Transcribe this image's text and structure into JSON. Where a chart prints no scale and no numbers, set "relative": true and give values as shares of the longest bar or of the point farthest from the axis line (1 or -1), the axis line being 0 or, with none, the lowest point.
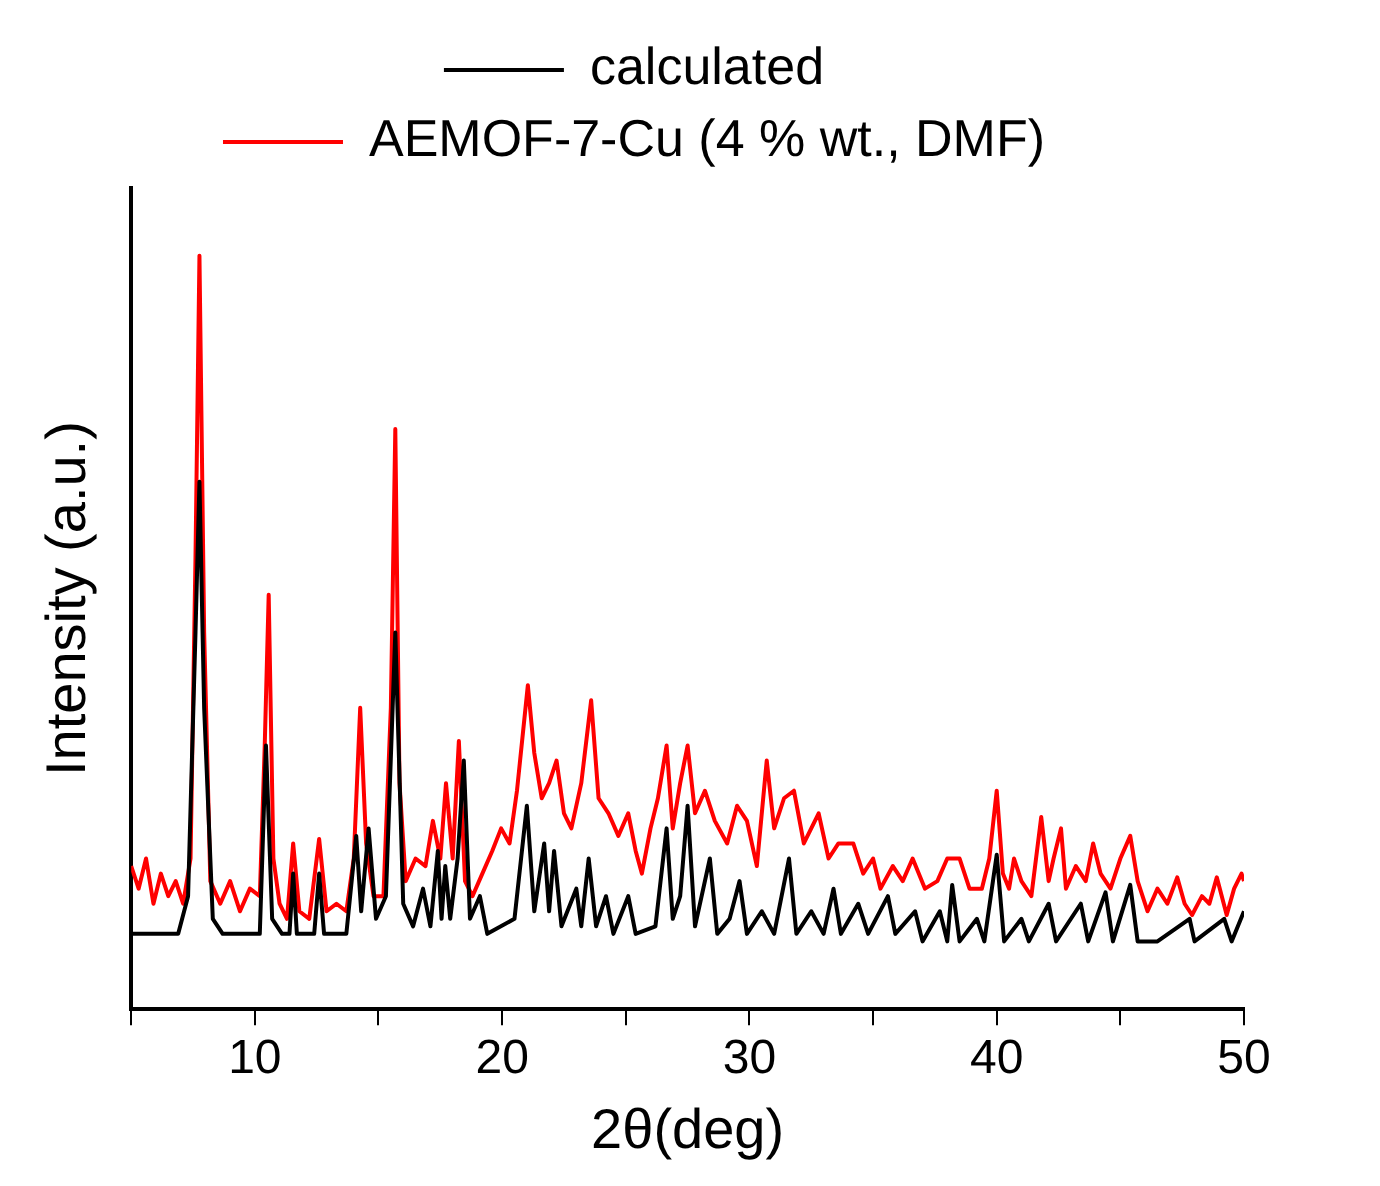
{
  "chart_data": {
    "type": "line",
    "xlabel": "2θ(deg)",
    "ylabel": "Intensity (a.u.)",
    "relative": true,
    "legend": "top",
    "tick_labels": "x",
    "marker": "none",
    "line_style": "solid",
    "xlim": [
      5,
      50
    ],
    "xticks": [
      {
        "value": 5,
        "label": null
      },
      10,
      {
        "value": 15,
        "label": null
      },
      20,
      {
        "value": 25,
        "label": null
      },
      30,
      {
        "value": 35,
        "label": null
      },
      40,
      {
        "value": 45,
        "label": null
      },
      50
    ],
    "series": [
      {
        "name": "calculated",
        "color": "#000000",
        "x": [
          5,
          6.9,
          7.3,
          7.6,
          7.76,
          7.95,
          8.3,
          8.7,
          10.2,
          10.45,
          10.7,
          11.1,
          11.4,
          11.55,
          11.7,
          12.4,
          12.6,
          12.8,
          13.7,
          14.1,
          14.3,
          14.6,
          14.9,
          15.3,
          15.68,
          16.0,
          16.4,
          16.8,
          17.1,
          17.4,
          17.55,
          17.7,
          17.9,
          18.2,
          18.45,
          18.7,
          19.1,
          19.4,
          20.5,
          21.0,
          21.3,
          21.7,
          21.9,
          22.1,
          22.4,
          23.0,
          23.2,
          23.5,
          23.8,
          24.2,
          24.5,
          25.1,
          25.4,
          26.2,
          26.65,
          26.9,
          27.2,
          27.5,
          27.8,
          28.4,
          28.7,
          29.2,
          29.6,
          29.9,
          30.5,
          31.0,
          31.6,
          31.9,
          32.5,
          33.0,
          33.4,
          33.7,
          34.4,
          34.8,
          35.6,
          35.9,
          36.7,
          37.0,
          37.7,
          38.0,
          38.2,
          38.5,
          39.2,
          39.5,
          40.0,
          40.3,
          41.0,
          41.3,
          42.1,
          42.4,
          43.4,
          43.7,
          44.4,
          44.7,
          45.4,
          45.7,
          46.5,
          47.8,
          48.0,
          49.2,
          49.5,
          50
        ],
        "values": [
          0.1,
          0.1,
          0.15,
          0.5,
          0.7,
          0.4,
          0.12,
          0.1,
          0.1,
          0.35,
          0.12,
          0.1,
          0.1,
          0.18,
          0.1,
          0.1,
          0.18,
          0.1,
          0.1,
          0.23,
          0.13,
          0.24,
          0.12,
          0.15,
          0.5,
          0.14,
          0.11,
          0.16,
          0.11,
          0.21,
          0.12,
          0.19,
          0.12,
          0.2,
          0.33,
          0.12,
          0.15,
          0.1,
          0.12,
          0.27,
          0.13,
          0.22,
          0.13,
          0.21,
          0.11,
          0.16,
          0.11,
          0.2,
          0.11,
          0.15,
          0.1,
          0.15,
          0.1,
          0.11,
          0.24,
          0.12,
          0.15,
          0.27,
          0.11,
          0.2,
          0.1,
          0.12,
          0.17,
          0.1,
          0.13,
          0.1,
          0.2,
          0.1,
          0.13,
          0.1,
          0.16,
          0.1,
          0.14,
          0.1,
          0.15,
          0.1,
          0.13,
          0.09,
          0.13,
          0.09,
          0.165,
          0.09,
          0.12,
          0.09,
          0.205,
          0.09,
          0.12,
          0.09,
          0.14,
          0.09,
          0.14,
          0.09,
          0.155,
          0.09,
          0.165,
          0.09,
          0.09,
          0.12,
          0.09,
          0.12,
          0.09,
          0.13
        ]
      },
      {
        "name": "AEMOF-7-Cu (4 % wt., DMF)",
        "color": "#ff0000",
        "x": [
          5,
          5.3,
          5.6,
          5.9,
          6.2,
          6.5,
          6.8,
          7.1,
          7.4,
          7.6,
          7.76,
          7.95,
          8.2,
          8.6,
          9.0,
          9.4,
          9.8,
          10.2,
          10.4,
          10.56,
          10.75,
          11.0,
          11.3,
          11.55,
          11.8,
          12.2,
          12.6,
          12.9,
          13.3,
          13.7,
          14.0,
          14.26,
          14.5,
          14.8,
          15.2,
          15.5,
          15.68,
          15.85,
          16.1,
          16.5,
          16.9,
          17.2,
          17.5,
          17.73,
          18.0,
          18.25,
          18.5,
          18.8,
          19.2,
          19.6,
          19.96,
          20.3,
          20.6,
          21.04,
          21.3,
          21.6,
          21.9,
          22.2,
          22.5,
          22.8,
          23.2,
          23.6,
          23.9,
          24.3,
          24.7,
          25.1,
          25.4,
          25.65,
          26.0,
          26.3,
          26.65,
          26.9,
          27.2,
          27.5,
          27.8,
          28.2,
          28.6,
          29.1,
          29.5,
          29.9,
          30.3,
          30.7,
          31.0,
          31.4,
          31.8,
          32.2,
          32.5,
          32.8,
          33.2,
          33.6,
          34.2,
          34.6,
          35.0,
          35.3,
          35.8,
          36.2,
          36.6,
          37.1,
          37.6,
          38.0,
          38.5,
          38.9,
          39.4,
          39.7,
          40.0,
          40.25,
          40.5,
          40.7,
          41.0,
          41.4,
          41.8,
          42.1,
          42.3,
          42.6,
          42.8,
          43.2,
          43.6,
          43.9,
          44.2,
          44.6,
          45.0,
          45.4,
          45.7,
          46.1,
          46.5,
          46.9,
          47.3,
          47.6,
          47.9,
          48.3,
          48.6,
          48.9,
          49.3,
          49.6,
          49.9,
          50
        ],
        "values": [
          0.19,
          0.16,
          0.2,
          0.14,
          0.18,
          0.15,
          0.17,
          0.14,
          0.2,
          0.6,
          1.0,
          0.5,
          0.17,
          0.14,
          0.17,
          0.13,
          0.16,
          0.15,
          0.35,
          0.55,
          0.2,
          0.14,
          0.12,
          0.22,
          0.13,
          0.12,
          0.226,
          0.13,
          0.14,
          0.13,
          0.2,
          0.4,
          0.22,
          0.15,
          0.15,
          0.4,
          0.77,
          0.3,
          0.17,
          0.2,
          0.19,
          0.25,
          0.2,
          0.3,
          0.2,
          0.356,
          0.17,
          0.15,
          0.18,
          0.21,
          0.24,
          0.22,
          0.29,
          0.43,
          0.34,
          0.28,
          0.3,
          0.33,
          0.26,
          0.24,
          0.3,
          0.41,
          0.28,
          0.26,
          0.23,
          0.26,
          0.21,
          0.18,
          0.24,
          0.28,
          0.35,
          0.24,
          0.3,
          0.35,
          0.26,
          0.29,
          0.25,
          0.22,
          0.27,
          0.25,
          0.19,
          0.33,
          0.24,
          0.28,
          0.29,
          0.22,
          0.24,
          0.26,
          0.2,
          0.22,
          0.22,
          0.18,
          0.2,
          0.16,
          0.19,
          0.17,
          0.2,
          0.16,
          0.17,
          0.2,
          0.2,
          0.16,
          0.16,
          0.2,
          0.29,
          0.18,
          0.16,
          0.2,
          0.17,
          0.15,
          0.255,
          0.17,
          0.2,
          0.24,
          0.16,
          0.19,
          0.17,
          0.22,
          0.18,
          0.16,
          0.2,
          0.23,
          0.17,
          0.13,
          0.16,
          0.14,
          0.175,
          0.14,
          0.125,
          0.15,
          0.14,
          0.175,
          0.125,
          0.16,
          0.18,
          0.17
        ]
      }
    ]
  }
}
